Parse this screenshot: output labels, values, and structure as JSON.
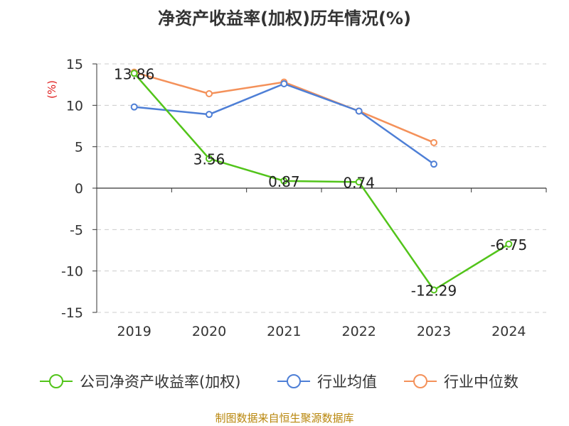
{
  "chart_data": {
    "type": "line",
    "title": "净资产收益率(加权)历年情况(%)",
    "ylabel": "(%)",
    "categories": [
      "2019",
      "2020",
      "2021",
      "2022",
      "2023",
      "2024"
    ],
    "ylim": [
      -15,
      15
    ],
    "yticks": [
      15,
      10,
      5,
      0,
      -5,
      -10,
      -15
    ],
    "grid": true,
    "legend_position": "bottom",
    "series": [
      {
        "name": "公司净资产收益率(加权)",
        "color": "#52c41a",
        "values": [
          13.86,
          3.56,
          0.87,
          0.74,
          -12.29,
          -6.75
        ],
        "data_labels": [
          "13.86",
          "3.56",
          "0.87",
          "0.74",
          "-12.29",
          "-6.75"
        ]
      },
      {
        "name": "行业均值",
        "color": "#4e7fd6",
        "values": [
          9.8,
          8.9,
          12.6,
          9.3,
          2.9,
          null
        ]
      },
      {
        "name": "行业中位数",
        "color": "#f4915a",
        "values": [
          14.0,
          11.4,
          12.8,
          9.3,
          5.5,
          null
        ]
      }
    ]
  },
  "source": "制图数据来自恒生聚源数据库"
}
